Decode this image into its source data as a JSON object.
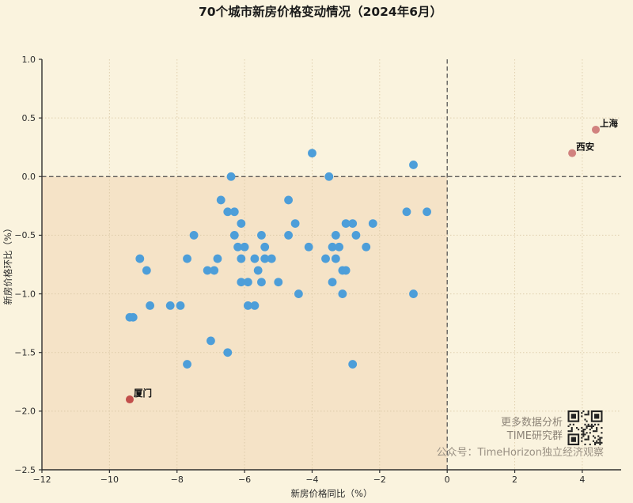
{
  "chart_data": {
    "type": "scatter",
    "title": "70个城市新房价格变动情况（2024年6月）",
    "xlabel": "新房价格同比（%）",
    "ylabel": "新房价格环比（%）",
    "xlim": [
      -12,
      5.15
    ],
    "ylim": [
      -2.5,
      1.0
    ],
    "x_ticks": [
      -12,
      -10,
      -8,
      -6,
      -4,
      -2,
      0,
      2,
      4
    ],
    "y_ticks": [
      1.0,
      0.5,
      0.0,
      -0.5,
      -1.0,
      -1.5,
      -2.0,
      -2.5
    ],
    "grid": "dotted",
    "zero_reference_lines": [
      "x=0 dashed",
      "y=0 dashed"
    ],
    "shaded_quadrant": {
      "x": [
        -12,
        0
      ],
      "y": [
        -2.5,
        0
      ]
    },
    "points": [
      [
        -4.0,
        0.2
      ],
      [
        -1.0,
        0.1
      ],
      [
        -6.4,
        0.0
      ],
      [
        -3.5,
        0.0
      ],
      [
        -6.7,
        -0.2
      ],
      [
        -4.7,
        -0.2
      ],
      [
        -6.5,
        -0.3
      ],
      [
        -6.3,
        -0.3
      ],
      [
        -1.2,
        -0.3
      ],
      [
        -0.6,
        -0.3
      ],
      [
        -6.1,
        -0.4
      ],
      [
        -4.5,
        -0.4
      ],
      [
        -3.0,
        -0.4
      ],
      [
        -2.8,
        -0.4
      ],
      [
        -2.2,
        -0.4
      ],
      [
        -7.5,
        -0.5
      ],
      [
        -6.3,
        -0.5
      ],
      [
        -5.5,
        -0.5
      ],
      [
        -4.7,
        -0.5
      ],
      [
        -3.3,
        -0.5
      ],
      [
        -2.7,
        -0.5
      ],
      [
        -6.2,
        -0.6
      ],
      [
        -6.0,
        -0.6
      ],
      [
        -5.4,
        -0.6
      ],
      [
        -4.1,
        -0.6
      ],
      [
        -3.4,
        -0.6
      ],
      [
        -3.2,
        -0.6
      ],
      [
        -2.4,
        -0.6
      ],
      [
        -9.1,
        -0.7
      ],
      [
        -7.7,
        -0.7
      ],
      [
        -6.8,
        -0.7
      ],
      [
        -6.1,
        -0.7
      ],
      [
        -5.7,
        -0.7
      ],
      [
        -5.4,
        -0.7
      ],
      [
        -5.2,
        -0.7
      ],
      [
        -3.6,
        -0.7
      ],
      [
        -3.3,
        -0.7
      ],
      [
        -8.9,
        -0.8
      ],
      [
        -7.1,
        -0.8
      ],
      [
        -6.9,
        -0.8
      ],
      [
        -5.6,
        -0.8
      ],
      [
        -3.1,
        -0.8
      ],
      [
        -3.0,
        -0.8
      ],
      [
        -6.1,
        -0.9
      ],
      [
        -5.9,
        -0.9
      ],
      [
        -5.5,
        -0.9
      ],
      [
        -5.0,
        -0.9
      ],
      [
        -3.4,
        -0.9
      ],
      [
        -4.4,
        -1.0
      ],
      [
        -3.1,
        -1.0
      ],
      [
        -1.0,
        -1.0
      ],
      [
        -8.8,
        -1.1
      ],
      [
        -8.2,
        -1.1
      ],
      [
        -7.9,
        -1.1
      ],
      [
        -5.9,
        -1.1
      ],
      [
        -5.7,
        -1.1
      ],
      [
        -9.4,
        -1.2
      ],
      [
        -9.3,
        -1.2
      ],
      [
        -7.0,
        -1.4
      ],
      [
        -6.5,
        -1.5
      ],
      [
        -7.7,
        -1.6
      ],
      [
        -2.8,
        -1.6
      ]
    ],
    "labeled_points": [
      {
        "label": "上海",
        "x": 4.4,
        "y": 0.4,
        "color": "#d1827f"
      },
      {
        "label": "西安",
        "x": 3.7,
        "y": 0.2,
        "color": "#d1827f"
      },
      {
        "label": "厦门",
        "x": -9.4,
        "y": -1.9,
        "color": "#c24f4b"
      }
    ],
    "legend": "none"
  },
  "watermark": {
    "line1": "更多数据分析",
    "line2": "TIME研究群",
    "line3": "公众号：TimeHorizon独立经济观察"
  },
  "icons": {
    "qr_code": "qr-code"
  },
  "colors": {
    "background": "#faf3de",
    "quadrant_shade": "#f5e3c7",
    "point": "#4d9ed9",
    "grid": "#d8c6a2",
    "dashed_line": "#4a4a4a",
    "axis": "#2f2f2f",
    "title_text": "#1a1a1a",
    "watermark_text": "#8d8478"
  }
}
